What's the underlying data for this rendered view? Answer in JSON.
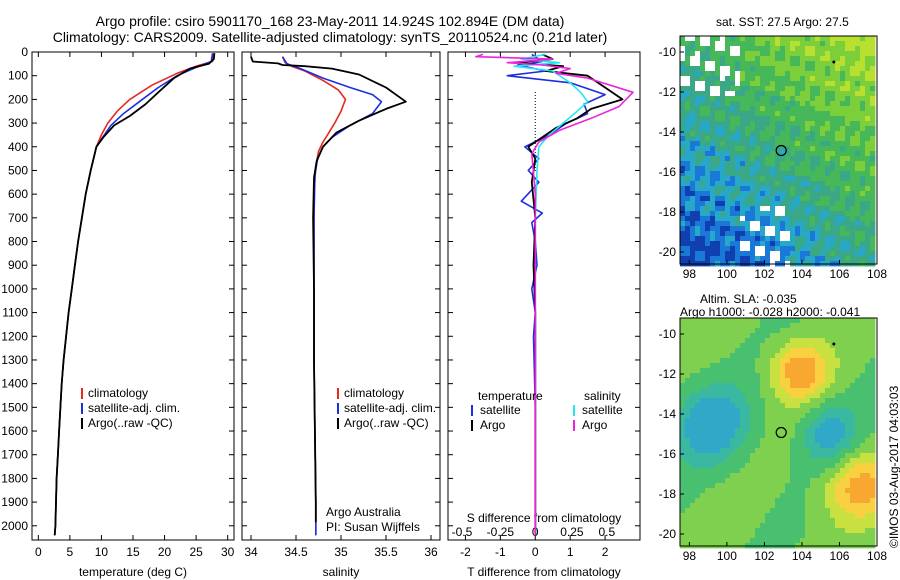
{
  "header": {
    "line1": "Argo profile: csiro 5901170_168 23-May-2011 14.924S 102.894E (DM data)",
    "line2": "Climatology: CARS2009. Satellite-adjusted climatology: synTS_20110524.nc (0.21d later)"
  },
  "maps": {
    "sst_title": "sat. SST: 27.5 Argo: 27.5",
    "sla_title1": "Altim. SLA: -0.035",
    "sla_title2": "Argo h1000: -0.028 h2000: -0.041",
    "lat_ticks": [
      "-10",
      "-12",
      "-14",
      "-16",
      "-18",
      "-20"
    ],
    "lon_ticks": [
      "98",
      "100",
      "102",
      "104",
      "106",
      "108"
    ],
    "marker_lon": 102.894,
    "marker_lat": -14.924
  },
  "footer": {
    "imos": "©IMOS 03-Aug-2017 04:03:03",
    "argo_aus": "Argo Australia",
    "pi": "PI: Susan Wijffels"
  },
  "colors": {
    "climatology": "#e8281e",
    "satellite": "#1c2ee0",
    "argo": "#000000",
    "s_satellite": "#22e8ee",
    "s_argo": "#ee22dd"
  },
  "chart_data": [
    {
      "type": "line",
      "xlabel": "temperature (deg C)",
      "xlim": [
        -1,
        31
      ],
      "ylim": [
        0,
        2060
      ],
      "xticks": [
        0,
        5,
        10,
        15,
        20,
        25,
        30
      ],
      "yticks": [
        0,
        100,
        200,
        300,
        400,
        500,
        600,
        700,
        800,
        900,
        1000,
        1100,
        1200,
        1300,
        1400,
        1500,
        1600,
        1700,
        1800,
        1900,
        2000
      ],
      "legend": [
        "climatology",
        "satellite-adj. clim.",
        "Argo(..raw -QC)"
      ],
      "series": [
        {
          "name": "climatology",
          "points": [
            [
              27.8,
              5
            ],
            [
              27.6,
              40
            ],
            [
              25,
              60
            ],
            [
              22,
              90
            ],
            [
              18,
              140
            ],
            [
              14.5,
              200
            ],
            [
              12.5,
              250
            ],
            [
              11,
              300
            ],
            [
              10,
              350
            ],
            [
              9.2,
              400
            ],
            [
              8.3,
              500
            ],
            [
              7.5,
              600
            ],
            [
              6.9,
              700
            ],
            [
              6.3,
              800
            ],
            [
              5.8,
              900
            ],
            [
              5.3,
              1000
            ],
            [
              4.8,
              1100
            ],
            [
              4.4,
              1200
            ],
            [
              4,
              1300
            ],
            [
              3.7,
              1400
            ],
            [
              3.5,
              1500
            ],
            [
              3.3,
              1600
            ],
            [
              3.1,
              1700
            ],
            [
              2.9,
              1800
            ],
            [
              2.8,
              1900
            ],
            [
              2.7,
              2000
            ],
            [
              2.6,
              2040
            ]
          ]
        },
        {
          "name": "satellite-adj. clim.",
          "points": [
            [
              27.6,
              5
            ],
            [
              27.4,
              40
            ],
            [
              25,
              65
            ],
            [
              22,
              100
            ],
            [
              19,
              150
            ],
            [
              16,
              210
            ],
            [
              13.5,
              260
            ],
            [
              11.5,
              310
            ],
            [
              10.2,
              360
            ],
            [
              9.2,
              400
            ],
            [
              8.3,
              500
            ],
            [
              7.5,
              600
            ],
            [
              6.9,
              700
            ],
            [
              6.3,
              800
            ],
            [
              5.8,
              900
            ],
            [
              5.3,
              1000
            ],
            [
              4.8,
              1100
            ],
            [
              4.4,
              1200
            ],
            [
              4,
              1300
            ],
            [
              3.7,
              1400
            ],
            [
              3.5,
              1500
            ],
            [
              3.3,
              1600
            ],
            [
              3.1,
              1700
            ],
            [
              2.9,
              1800
            ],
            [
              2.8,
              1900
            ],
            [
              2.7,
              2000
            ],
            [
              2.6,
              2040
            ]
          ]
        },
        {
          "name": "Argo(..raw -QC)",
          "points": [
            [
              27.9,
              5
            ],
            [
              27.8,
              30
            ],
            [
              27,
              50
            ],
            [
              24,
              70
            ],
            [
              21.5,
              110
            ],
            [
              19,
              170
            ],
            [
              17,
              220
            ],
            [
              14.5,
              270
            ],
            [
              12,
              310
            ],
            [
              10.3,
              360
            ],
            [
              9.2,
              400
            ],
            [
              8.3,
              500
            ],
            [
              7.5,
              600
            ],
            [
              6.9,
              700
            ],
            [
              6.3,
              800
            ],
            [
              5.8,
              900
            ],
            [
              5.3,
              1000
            ],
            [
              4.8,
              1100
            ],
            [
              4.4,
              1200
            ],
            [
              4,
              1300
            ],
            [
              3.7,
              1400
            ],
            [
              3.5,
              1500
            ],
            [
              3.3,
              1600
            ],
            [
              3.1,
              1700
            ],
            [
              2.9,
              1800
            ],
            [
              2.8,
              1900
            ],
            [
              2.7,
              2000
            ],
            [
              2.6,
              2040
            ]
          ]
        }
      ]
    },
    {
      "type": "line",
      "xlabel": "salinity",
      "xlim": [
        33.9,
        36.1
      ],
      "ylim": [
        0,
        2060
      ],
      "xticks": [
        34,
        34.5,
        35,
        35.5,
        36
      ],
      "legend": [
        "climatology",
        "satellite-adj. clim.",
        "Argo(..raw -QC)"
      ],
      "series": [
        {
          "name": "climatology",
          "points": [
            [
              34.35,
              20
            ],
            [
              34.38,
              45
            ],
            [
              34.45,
              60
            ],
            [
              34.6,
              80
            ],
            [
              34.8,
              120
            ],
            [
              34.97,
              160
            ],
            [
              35.05,
              200
            ],
            [
              35,
              250
            ],
            [
              34.93,
              300
            ],
            [
              34.85,
              350
            ],
            [
              34.8,
              380
            ],
            [
              34.75,
              420
            ],
            [
              34.72,
              480
            ],
            [
              34.7,
              600
            ],
            [
              34.7,
              800
            ],
            [
              34.7,
              1000
            ],
            [
              34.7,
              1300
            ],
            [
              34.71,
              1600
            ],
            [
              34.72,
              1900
            ],
            [
              34.72,
              2040
            ]
          ]
        },
        {
          "name": "satellite-adj. clim.",
          "points": [
            [
              34.35,
              20
            ],
            [
              34.4,
              50
            ],
            [
              34.55,
              70
            ],
            [
              34.8,
              110
            ],
            [
              35.1,
              150
            ],
            [
              35.35,
              180
            ],
            [
              35.45,
              210
            ],
            [
              35.35,
              260
            ],
            [
              35.1,
              310
            ],
            [
              34.9,
              360
            ],
            [
              34.8,
              400
            ],
            [
              34.74,
              450
            ],
            [
              34.71,
              520
            ],
            [
              34.7,
              700
            ],
            [
              34.7,
              1000
            ],
            [
              34.7,
              1300
            ],
            [
              34.71,
              1600
            ],
            [
              34.72,
              1900
            ],
            [
              34.72,
              2040
            ]
          ]
        },
        {
          "name": "Argo(..raw -QC)",
          "points": [
            [
              34.0,
              20
            ],
            [
              34.02,
              40
            ],
            [
              34.3,
              48
            ],
            [
              34.35,
              55
            ],
            [
              34.6,
              60
            ],
            [
              34.9,
              70
            ],
            [
              35.2,
              95
            ],
            [
              35.5,
              150
            ],
            [
              35.72,
              210
            ],
            [
              35.5,
              240
            ],
            [
              35.2,
              290
            ],
            [
              34.95,
              340
            ],
            [
              34.8,
              400
            ],
            [
              34.73,
              460
            ],
            [
              34.7,
              530
            ],
            [
              34.69,
              700
            ],
            [
              34.7,
              1000
            ],
            [
              34.7,
              1300
            ],
            [
              34.71,
              1600
            ],
            [
              34.72,
              1900
            ],
            [
              34.72,
              1985
            ]
          ]
        }
      ]
    },
    {
      "type": "line",
      "xlabel": "T difference from climatology",
      "xlabel_top": "S difference from climatology",
      "xlim": [
        -2.5,
        3
      ],
      "ylim": [
        0,
        2060
      ],
      "xticks": [
        -2,
        -1,
        0,
        1,
        2
      ],
      "xticks_top": [
        "-0.5",
        "-0.25",
        "0",
        "0.25",
        "0.5"
      ],
      "legend_left_title": "temperature",
      "legend_right_title": "salinity",
      "legend": [
        "satellite",
        "Argo",
        "satellite",
        "Argo"
      ],
      "series": [
        {
          "name": "satellite",
          "points": [
            [
              -0.1,
              10
            ],
            [
              0.2,
              40
            ],
            [
              -0.5,
              55
            ],
            [
              0.3,
              80
            ],
            [
              -0.8,
              100
            ],
            [
              1.0,
              130
            ],
            [
              2.0,
              180
            ],
            [
              1.4,
              220
            ],
            [
              1.5,
              260
            ],
            [
              0.9,
              300
            ],
            [
              0.4,
              350
            ],
            [
              -0.3,
              400
            ],
            [
              0.1,
              450
            ],
            [
              -0.2,
              500
            ],
            [
              0.1,
              550
            ],
            [
              -0.4,
              630
            ],
            [
              0.2,
              680
            ],
            [
              -0.1,
              720
            ],
            [
              0,
              800
            ],
            [
              0.05,
              900
            ],
            [
              -0.1,
              1000
            ],
            [
              0,
              1100
            ],
            [
              -0.05,
              1200
            ],
            [
              0,
              1500
            ],
            [
              0,
              1800
            ],
            [
              0,
              2040
            ]
          ]
        },
        {
          "name": "Argo",
          "points": [
            [
              0.2,
              10
            ],
            [
              0.5,
              30
            ],
            [
              -0.6,
              45
            ],
            [
              0.8,
              60
            ],
            [
              0.3,
              80
            ],
            [
              1.5,
              100
            ],
            [
              2.0,
              150
            ],
            [
              2.5,
              200
            ],
            [
              1.6,
              240
            ],
            [
              1.2,
              280
            ],
            [
              0.6,
              320
            ],
            [
              0.2,
              360
            ],
            [
              -0.2,
              400
            ],
            [
              0,
              450
            ],
            [
              -0.1,
              550
            ],
            [
              0,
              700
            ],
            [
              -0.05,
              900
            ],
            [
              0,
              1100
            ],
            [
              0,
              1500
            ],
            [
              0,
              1800
            ],
            [
              0,
              2040
            ]
          ]
        },
        {
          "name": "satellite",
          "points": [
            [
              0.3,
              10
            ],
            [
              -0.4,
              30
            ],
            [
              0.7,
              45
            ],
            [
              -0.6,
              60
            ],
            [
              0.5,
              80
            ],
            [
              1.0,
              130
            ],
            [
              1.3,
              170
            ],
            [
              1.5,
              210
            ],
            [
              1.2,
              250
            ],
            [
              0.8,
              300
            ],
            [
              0.4,
              350
            ],
            [
              0.1,
              400
            ],
            [
              0.05,
              500
            ],
            [
              0,
              700
            ],
            [
              0,
              1000
            ],
            [
              0,
              1300
            ],
            [
              0,
              1600
            ],
            [
              0,
              1900
            ],
            [
              0,
              2040
            ]
          ]
        },
        {
          "name": "Argo",
          "points": [
            [
              -1.5,
              10
            ],
            [
              -1.7,
              20
            ],
            [
              0.5,
              30
            ],
            [
              -0.8,
              45
            ],
            [
              0.2,
              55
            ],
            [
              1.0,
              70
            ],
            [
              0.6,
              90
            ],
            [
              1.5,
              110
            ],
            [
              2.8,
              170
            ],
            [
              2.4,
              230
            ],
            [
              1.6,
              280
            ],
            [
              0.7,
              330
            ],
            [
              0.1,
              380
            ],
            [
              -0.1,
              430
            ],
            [
              0,
              600
            ],
            [
              0,
              900
            ],
            [
              0,
              1300
            ],
            [
              0,
              1700
            ],
            [
              0,
              2040
            ]
          ]
        }
      ]
    }
  ]
}
